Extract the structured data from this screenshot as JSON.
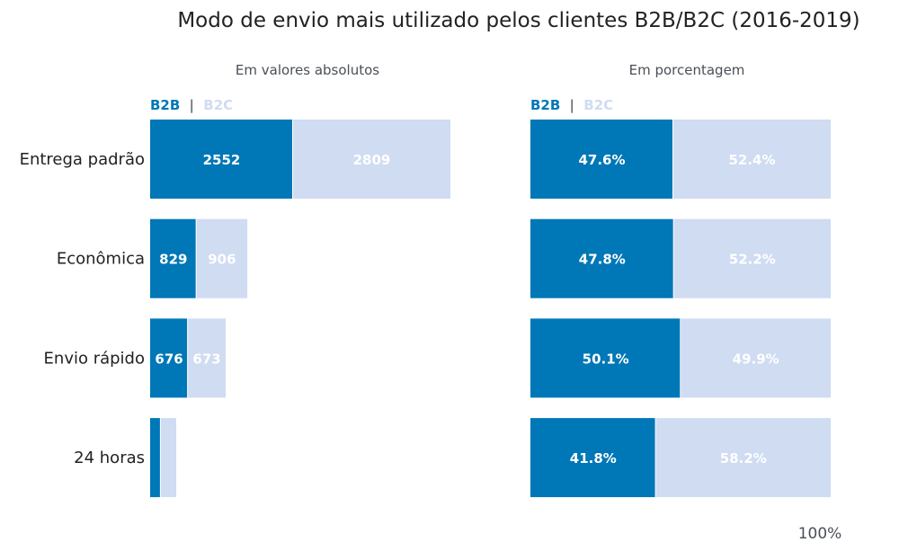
{
  "title": "Modo de envio mais utilizado pelos clientes B2B/B2C (2016-2019)",
  "footer_label": "100%",
  "colors": {
    "b2b": "#0077b6",
    "b2c": "#cfdcf2",
    "separator": "#6b6b6b",
    "text": "#222222",
    "subtitle": "#4a4f57"
  },
  "chart_data": [
    {
      "type": "bar",
      "orientation": "horizontal",
      "stacked": true,
      "subtitle": "Em valores absolutos",
      "legend": {
        "items": [
          "B2B",
          "B2C"
        ],
        "separator": "|",
        "position": "top-left"
      },
      "categories": [
        "Entrega padrão",
        "Econômica",
        "Envio rápido",
        "24 horas"
      ],
      "series": [
        {
          "name": "B2B",
          "values": [
            2552,
            829,
            676,
            191
          ],
          "labels": [
            "2552",
            "829",
            "676",
            ""
          ]
        },
        {
          "name": "B2C",
          "values": [
            2809,
            906,
            673,
            274
          ],
          "labels": [
            "2809",
            "906",
            "673",
            ""
          ]
        }
      ],
      "xlim": [
        0,
        5361
      ],
      "grid": false
    },
    {
      "type": "bar",
      "orientation": "horizontal",
      "stacked": true,
      "subtitle": "Em porcentagem",
      "legend": {
        "items": [
          "B2B",
          "B2C"
        ],
        "separator": "|",
        "position": "top-left"
      },
      "categories": [
        "Entrega padrão",
        "Econômica",
        "Envio rápido",
        "24 horas"
      ],
      "series": [
        {
          "name": "B2B",
          "values": [
            47.6,
            47.8,
            50.1,
            41.8
          ],
          "labels": [
            "47.6%",
            "47.8%",
            "50.1%",
            "41.8%"
          ]
        },
        {
          "name": "B2C",
          "values": [
            52.4,
            52.2,
            49.9,
            58.2
          ],
          "labels": [
            "52.4%",
            "52.2%",
            "49.9%",
            "58.2%"
          ]
        }
      ],
      "xlim": [
        0,
        100
      ],
      "grid": false
    }
  ]
}
